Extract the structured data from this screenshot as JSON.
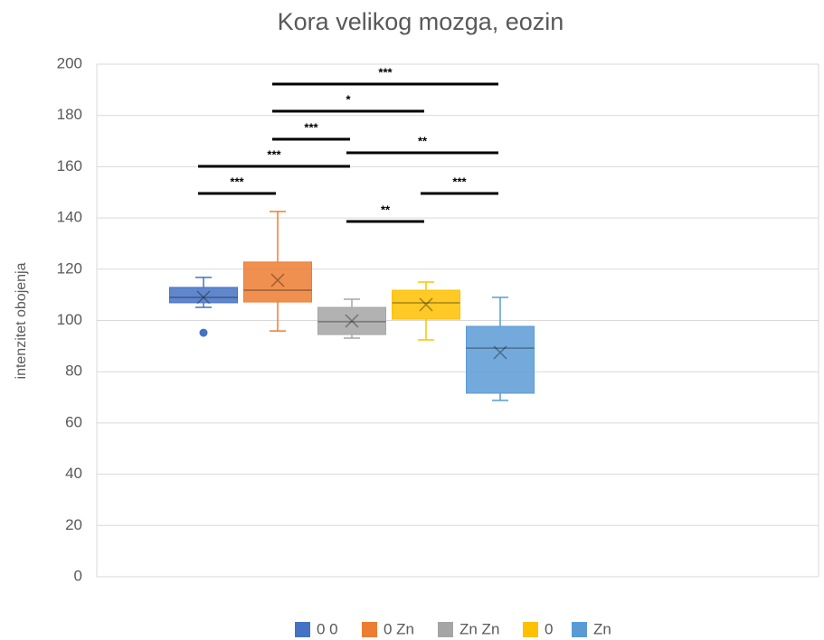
{
  "chart_data": {
    "type": "box",
    "title": "Kora velikog mozga, eozin",
    "y_label": "intenzitet obojenja",
    "ylim": [
      0,
      200
    ],
    "yticks": [
      0,
      20,
      40,
      60,
      80,
      100,
      120,
      140,
      160,
      180,
      200
    ],
    "grid": true,
    "series": [
      {
        "name": "0 0",
        "color": "#4472c4",
        "min": 105.1,
        "q1": 106.9,
        "median": 109,
        "q3": 112.9,
        "max": 116.8,
        "mean": 109,
        "outliers": [
          95.2
        ]
      },
      {
        "name": "0 Zn",
        "color": "#ed7d31",
        "min": 95.9,
        "q1": 107.2,
        "median": 111.8,
        "q3": 122.8,
        "max": 142.5,
        "mean": 115.7,
        "outliers": []
      },
      {
        "name": "Zn Zn",
        "color": "#a5a5a5",
        "min": 93.1,
        "q1": 94.5,
        "median": 99.5,
        "q3": 105.1,
        "max": 108.3,
        "mean": 99.8,
        "outliers": []
      },
      {
        "name": "0",
        "color": "#ffc000",
        "min": 92.4,
        "q1": 100.5,
        "median": 106.9,
        "q3": 111.8,
        "max": 115,
        "mean": 106.2,
        "outliers": []
      },
      {
        "name": "Zn",
        "color": "#5b9bd5",
        "min": 68.8,
        "q1": 71.6,
        "median": 89.2,
        "q3": 97.7,
        "max": 109,
        "mean": 87.5,
        "outliers": []
      }
    ],
    "annotations": [
      {
        "text": "***",
        "from": 1,
        "to": 4
      },
      {
        "text": "*",
        "from": 1,
        "to": 3
      },
      {
        "text": "***",
        "from": 1,
        "to": 2
      },
      {
        "text": "**",
        "from": 2,
        "to": 4
      },
      {
        "text": "***",
        "from": 0,
        "to": 2
      },
      {
        "text": "***",
        "from": 0,
        "to": 1
      },
      {
        "text": "***",
        "from": 3,
        "to": 4
      },
      {
        "text": "**",
        "from": 2,
        "to": 3
      }
    ]
  }
}
